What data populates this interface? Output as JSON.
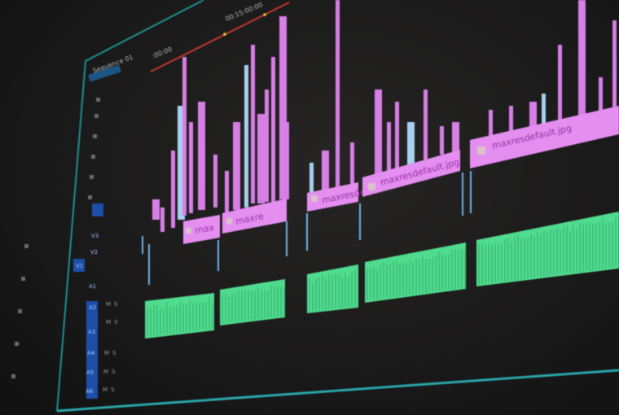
{
  "app": "video-editing-timeline",
  "ruler": {
    "timecode_main": "00:15:00:00",
    "timecode_start": ":00:00"
  },
  "sequence": {
    "name": "Sequence 01"
  },
  "colors": {
    "video_clip": "#e48ef0",
    "audio_clip": "#4fdc8e",
    "playhead_range": "#c0392b",
    "frame": "#1f8f92",
    "track_target": "#1d4fa8"
  },
  "video_clips": [
    {
      "label": "max"
    },
    {
      "label": "maxre"
    },
    {
      "label": "maxresde"
    },
    {
      "label": "maxresdefault.jpg"
    },
    {
      "label": "maxresdefault.jpg"
    }
  ],
  "tracks": {
    "video": [
      "V3",
      "V2",
      "V1"
    ],
    "audio": [
      "A1",
      "A2",
      "A3",
      "A4",
      "A5",
      "A6"
    ],
    "mute": "M",
    "solo": "S"
  }
}
